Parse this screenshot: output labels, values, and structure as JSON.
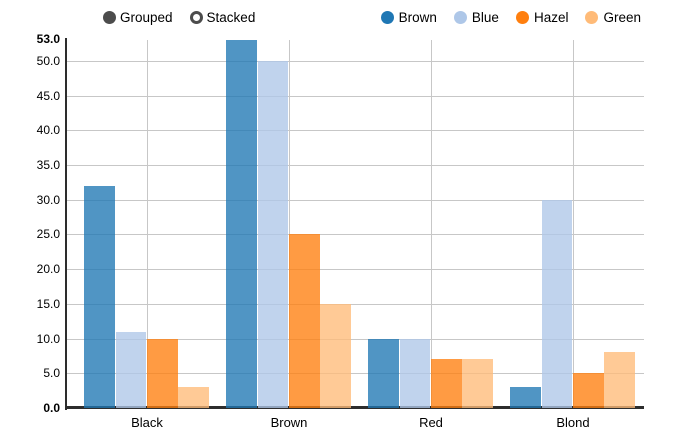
{
  "controls": {
    "options": [
      {
        "label": "Grouped",
        "selected": true
      },
      {
        "label": "Stacked",
        "selected": false
      }
    ]
  },
  "legend": {
    "position": "top-right",
    "items": [
      {
        "label": "Brown",
        "color": "#1f77b4"
      },
      {
        "label": "Blue",
        "color": "#aec7e8"
      },
      {
        "label": "Hazel",
        "color": "#ff7f0e"
      },
      {
        "label": "Green",
        "color": "#ffbb78"
      }
    ]
  },
  "chart_data": {
    "type": "bar",
    "mode": "grouped",
    "title": "",
    "xlabel": "",
    "ylabel": "",
    "categories": [
      "Black",
      "Brown",
      "Red",
      "Blond"
    ],
    "series": [
      {
        "name": "Brown",
        "color": "#1f77b4",
        "values": [
          32,
          53,
          10,
          3
        ]
      },
      {
        "name": "Blue",
        "color": "#aec7e8",
        "values": [
          11,
          50,
          10,
          30
        ]
      },
      {
        "name": "Hazel",
        "color": "#ff7f0e",
        "values": [
          10,
          25,
          7,
          5
        ]
      },
      {
        "name": "Green",
        "color": "#ffbb78",
        "values": [
          3,
          15,
          7,
          8
        ]
      }
    ],
    "ylim": [
      0,
      53
    ],
    "yticks": [
      0,
      5,
      10,
      15,
      20,
      25,
      30,
      35,
      40,
      45,
      50
    ],
    "ymin_label": "0.0",
    "ymax_label": "53.0",
    "tick_decimals": 1,
    "grid": true,
    "bar_opacity": 0.78,
    "gridline_color": "#c7c7c7",
    "axis_color": "#2d2d2d"
  }
}
